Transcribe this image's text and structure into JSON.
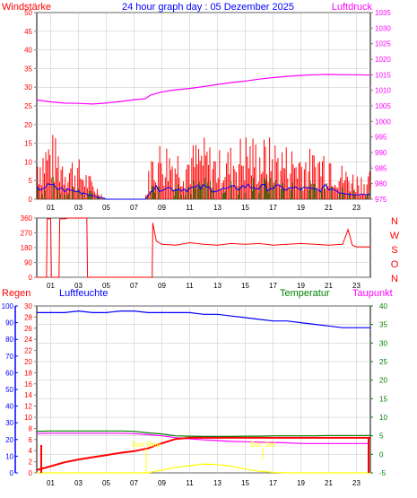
{
  "title": "24 hour graph day : 05 Dezember 2025",
  "colors": {
    "wind": "#ff0000",
    "gust_bars": "#ff0000",
    "wind_avg": "#0000ff",
    "wind_green": "#008000",
    "pressure": "#ff00ff",
    "direction": "#ff0000",
    "rain": "#ff0000",
    "humidity": "#0000ff",
    "temperature": "#008000",
    "dewpoint": "#ff00ff",
    "solar": "#ffff00",
    "grid": "#c0c0c0",
    "axis": "#808080",
    "frame": "#000000"
  },
  "panel1": {
    "label_left": "Windstärke",
    "label_right": "Luftdruck",
    "y_left_ticks": [
      "0",
      "5",
      "10",
      "15",
      "20",
      "25",
      "30",
      "35",
      "40",
      "45",
      "50"
    ],
    "y_right_ticks": [
      "975",
      "980",
      "985",
      "990",
      "995",
      "1000",
      "1005",
      "1010",
      "1015",
      "1020",
      "1025",
      "1030",
      "1035"
    ],
    "x_ticks": [
      "01",
      "03",
      "05",
      "07",
      "09",
      "11",
      "13",
      "15",
      "17",
      "19",
      "21",
      "23"
    ]
  },
  "panel2": {
    "y_left_ticks": [
      "0",
      "90",
      "180",
      "270",
      "360"
    ],
    "y_right_labels": [
      "N",
      "W",
      "S",
      "O",
      "N"
    ],
    "x_ticks": [
      "01",
      "03",
      "05",
      "07",
      "09",
      "11",
      "13",
      "15",
      "17",
      "19",
      "21",
      "23"
    ]
  },
  "panel3": {
    "label_rain": "Regen",
    "label_humidity": "Luftfeuchte",
    "label_temp": "Temperatur",
    "label_dew": "Taupunkt",
    "y_humidity_ticks": [
      "0",
      "10",
      "20",
      "30",
      "40",
      "50",
      "60",
      "70",
      "80",
      "90",
      "100"
    ],
    "y_rain_ticks": [
      "0",
      "2",
      "4",
      "6",
      "8",
      "10",
      "12",
      "14",
      "16",
      "18",
      "20",
      "22",
      "24",
      "26",
      "28",
      "30"
    ],
    "y_temp_ticks": [
      "-5",
      "0",
      "5",
      "10",
      "15",
      "20",
      "25",
      "30",
      "35",
      "40"
    ],
    "x_ticks": [
      "01",
      "03",
      "05",
      "07",
      "09",
      "11",
      "13",
      "15",
      "17",
      "19",
      "21",
      "23"
    ],
    "annot_sunrise": "Sun Rise",
    "annot_sunset": "Sun Set"
  },
  "chart_data": [
    {
      "type": "line",
      "ylabel": "Windstärke",
      "ylim": [
        0,
        50
      ],
      "y2label": "Luftdruck",
      "y2lim": [
        975,
        1035
      ],
      "grid": true,
      "x": [
        0,
        1,
        2,
        3,
        4,
        5,
        6,
        7,
        7.8,
        8.2,
        9,
        10,
        11,
        12,
        13,
        14,
        15,
        16,
        17,
        18,
        19,
        20,
        21,
        22,
        23,
        24
      ],
      "series": [
        {
          "name": "Windstärke",
          "axis": "left",
          "values": [
            8,
            10,
            7,
            6,
            3,
            0,
            0,
            0,
            0,
            7,
            9,
            8,
            8,
            9,
            7,
            8,
            10,
            9,
            9,
            8,
            8,
            7,
            9,
            5,
            4,
            4
          ]
        },
        {
          "name": "Luftdruck",
          "axis": "right",
          "values": [
            1006.9,
            1006.3,
            1005.9,
            1005.8,
            1005.6,
            1005.9,
            1006.4,
            1007.0,
            1007.3,
            1008.5,
            1009.5,
            1010.2,
            1010.6,
            1011.2,
            1011.9,
            1012.5,
            1013.0,
            1013.6,
            1014.1,
            1014.5,
            1014.8,
            1015.0,
            1015.1,
            1015.0,
            1015.0,
            1014.9
          ]
        }
      ]
    },
    {
      "type": "line",
      "ylim": [
        0,
        360
      ],
      "grid": true,
      "x": [
        0,
        0.7,
        0.75,
        1.0,
        1.05,
        1.6,
        1.65,
        2.1,
        2.2,
        3.6,
        3.65,
        7.8,
        8.3,
        8.35,
        8.6,
        9,
        10,
        11,
        12,
        13,
        14,
        15,
        16,
        17,
        18,
        19,
        20,
        21,
        22,
        22.4,
        22.7,
        23,
        24
      ],
      "series": [
        {
          "name": "Windrichtung",
          "values": [
            0,
            0,
            355,
            355,
            0,
            0,
            355,
            355,
            360,
            360,
            0,
            0,
            0,
            330,
            220,
            200,
            195,
            210,
            200,
            195,
            205,
            200,
            205,
            195,
            200,
            205,
            200,
            195,
            200,
            290,
            195,
            185,
            185
          ]
        }
      ]
    },
    {
      "type": "line",
      "ylabel": "Luftfeuchte",
      "ylim": [
        0,
        100
      ],
      "y2label": "Temperatur",
      "y2lim": [
        -5,
        40
      ],
      "grid": true,
      "x": [
        0,
        1,
        2,
        3,
        4,
        5,
        6,
        7,
        8,
        9,
        10,
        11,
        12,
        13,
        14,
        15,
        16,
        17,
        18,
        19,
        20,
        21,
        22,
        23,
        24
      ],
      "series": [
        {
          "name": "Luftfeuchte",
          "axis": "left",
          "values": [
            96,
            96,
            96,
            97,
            96,
            96,
            97,
            97,
            96,
            96,
            96,
            96,
            95,
            95,
            94,
            93,
            92,
            91,
            91,
            90,
            89,
            88,
            87,
            87,
            87
          ]
        },
        {
          "name": "Temperatur",
          "axis": "right",
          "values": [
            6.2,
            6.3,
            6.3,
            6.3,
            6.3,
            6.3,
            6.3,
            6.2,
            5.8,
            5.5,
            5.0,
            4.9,
            4.8,
            4.8,
            4.8,
            4.9,
            4.9,
            5.0,
            5.0,
            5.0,
            5.0,
            5.1,
            5.1,
            5.1,
            5.1
          ]
        },
        {
          "name": "Taupunkt",
          "axis": "right",
          "values": [
            5.6,
            5.7,
            5.7,
            5.7,
            5.7,
            5.7,
            5.7,
            5.6,
            5.3,
            5.0,
            4.5,
            4.2,
            3.9,
            3.7,
            3.5,
            3.4,
            3.3,
            3.2,
            3.1,
            2.9,
            2.9,
            2.9,
            2.9,
            2.9,
            2.9
          ]
        },
        {
          "name": "Regen",
          "axis": "rain",
          "ylim": [
            0,
            30
          ],
          "values": [
            0.5,
            1.2,
            1.9,
            2.4,
            2.8,
            3.2,
            3.6,
            3.9,
            4.4,
            5.3,
            6.1,
            6.3,
            6.3,
            6.3,
            6.3,
            6.3,
            6.3,
            6.3,
            6.3,
            6.3,
            6.3,
            6.3,
            6.3,
            6.3,
            6.3
          ]
        },
        {
          "name": "Solar",
          "axis": "rain",
          "ylim": [
            0,
            30
          ],
          "values": [
            0,
            0,
            0,
            0,
            0,
            0,
            0,
            0,
            0,
            0.5,
            1.0,
            1.3,
            1.6,
            1.5,
            1.2,
            0.7,
            0.3,
            0.1,
            0,
            0,
            0,
            0,
            0,
            0,
            0
          ]
        }
      ]
    }
  ]
}
